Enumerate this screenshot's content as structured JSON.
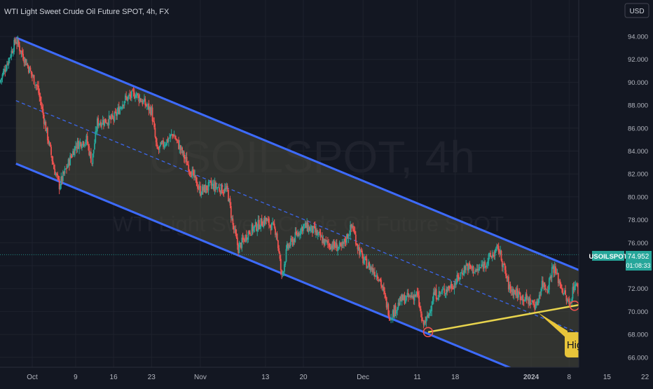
{
  "chart_title": "WTI Light Sweet Crude Oil Future SPOT, 4h, FX",
  "currency": "USD",
  "watermark": {
    "symbol": "USOILSPOT, 4h",
    "description": "WTI Light Sweet Crude Oil Future SPOT"
  },
  "price_badge": {
    "symbol": "USOILSPOT",
    "price": "74.952",
    "countdown": "01:08:33"
  },
  "annotation": "Higher lows",
  "colors": {
    "background": "#131722",
    "up": "#26a69a",
    "down": "#ef5350",
    "channel": "#3d6bff",
    "channel_fill": "#4a4a3c",
    "trendline": "#e8d44d",
    "callout": "#e8c53a",
    "circle": "#ef5350"
  },
  "chart_data": {
    "type": "candlestick",
    "title": "WTI Light Sweet Crude Oil Future SPOT, 4h, FX",
    "ylabel": "USD",
    "ylim": [
      65.0,
      96.0
    ],
    "y_ticks": [
      "94.000",
      "92.000",
      "90.000",
      "88.000",
      "86.000",
      "84.000",
      "82.000",
      "80.000",
      "78.000",
      "76.000",
      "74.000",
      "72.000",
      "70.000",
      "68.000",
      "66.000"
    ],
    "x_ticks": [
      {
        "label": "Oct",
        "date": "2023-10-01"
      },
      {
        "label": "9",
        "date": "2023-10-09"
      },
      {
        "label": "16",
        "date": "2023-10-16"
      },
      {
        "label": "23",
        "date": "2023-10-23"
      },
      {
        "label": "Nov",
        "date": "2023-11-01"
      },
      {
        "label": "13",
        "date": "2023-11-13"
      },
      {
        "label": "20",
        "date": "2023-11-20"
      },
      {
        "label": "Dec",
        "date": "2023-12-01"
      },
      {
        "label": "11",
        "date": "2023-12-11"
      },
      {
        "label": "18",
        "date": "2023-12-18"
      },
      {
        "label": "2024",
        "date": "2024-01-01"
      },
      {
        "label": "8",
        "date": "2024-01-08"
      },
      {
        "label": "15",
        "date": "2024-01-15"
      },
      {
        "label": "22",
        "date": "2024-01-22"
      }
    ],
    "price_path": [
      [
        "2023-09-25",
        90.0
      ],
      [
        "2023-09-28",
        93.7
      ],
      [
        "2023-10-02",
        89.5
      ],
      [
        "2023-10-05",
        82.5
      ],
      [
        "2023-10-06",
        81.0
      ],
      [
        "2023-10-09",
        84.5
      ],
      [
        "2023-10-11",
        85.0
      ],
      [
        "2023-10-12",
        83.0
      ],
      [
        "2023-10-13",
        86.5
      ],
      [
        "2023-10-16",
        86.8
      ],
      [
        "2023-10-18",
        88.5
      ],
      [
        "2023-10-20",
        89.0
      ],
      [
        "2023-10-23",
        87.5
      ],
      [
        "2023-10-24",
        84.0
      ],
      [
        "2023-10-26",
        85.0
      ],
      [
        "2023-10-27",
        85.5
      ],
      [
        "2023-10-30",
        82.5
      ],
      [
        "2023-11-01",
        80.5
      ],
      [
        "2023-11-03",
        81.0
      ],
      [
        "2023-11-06",
        80.5
      ],
      [
        "2023-11-07",
        77.5
      ],
      [
        "2023-11-08",
        75.5
      ],
      [
        "2023-11-10",
        77.0
      ],
      [
        "2023-11-13",
        78.0
      ],
      [
        "2023-11-15",
        77.0
      ],
      [
        "2023-11-16",
        73.0
      ],
      [
        "2023-11-17",
        75.5
      ],
      [
        "2023-11-20",
        77.5
      ],
      [
        "2023-11-22",
        77.0
      ],
      [
        "2023-11-24",
        76.0
      ],
      [
        "2023-11-27",
        75.5
      ],
      [
        "2023-11-29",
        77.5
      ],
      [
        "2023-11-30",
        75.7
      ],
      [
        "2023-12-01",
        74.5
      ],
      [
        "2023-12-04",
        73.0
      ],
      [
        "2023-12-06",
        69.5
      ],
      [
        "2023-12-08",
        71.0
      ],
      [
        "2023-12-11",
        71.5
      ],
      [
        "2023-12-12",
        68.8
      ],
      [
        "2023-12-13",
        69.5
      ],
      [
        "2023-12-14",
        71.5
      ],
      [
        "2023-12-15",
        71.5
      ],
      [
        "2023-12-18",
        72.5
      ],
      [
        "2023-12-20",
        74.0
      ],
      [
        "2023-12-22",
        73.5
      ],
      [
        "2023-12-26",
        75.5
      ],
      [
        "2023-12-28",
        72.0
      ],
      [
        "2024-01-02",
        70.5
      ],
      [
        "2024-01-03",
        72.5
      ],
      [
        "2024-01-04",
        72.0
      ],
      [
        "2024-01-05",
        74.0
      ],
      [
        "2024-01-08",
        70.5
      ],
      [
        "2024-01-09",
        72.5
      ],
      [
        "2024-01-10",
        71.5
      ],
      [
        "2024-01-11",
        72.8
      ],
      [
        "2024-01-12",
        72.0
      ],
      [
        "2024-01-13",
        73.8
      ],
      [
        "2024-01-14",
        74.95
      ]
    ],
    "channel": {
      "upper": [
        [
          "2023-09-28",
          93.9
        ],
        [
          "2024-01-15",
          72.6
        ]
      ],
      "median": [
        [
          "2023-09-28",
          88.4
        ],
        [
          "2024-01-15",
          67.1
        ]
      ],
      "lower": [
        [
          "2023-09-28",
          82.9
        ],
        [
          "2024-01-15",
          61.6
        ]
      ]
    },
    "support_line": [
      [
        "2023-12-13",
        68.2
      ],
      [
        "2024-01-16",
        71.1
      ]
    ],
    "higher_low_points": [
      [
        "2023-12-13",
        68.2
      ],
      [
        "2024-01-09",
        70.5
      ],
      [
        "2024-01-13",
        71.3
      ]
    ],
    "last_price": 74.952
  }
}
